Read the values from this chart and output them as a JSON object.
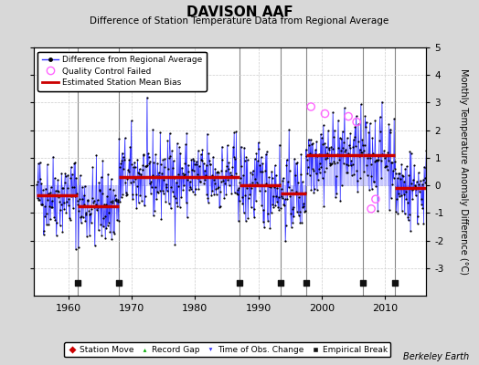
{
  "title": "DAVISON AAF",
  "subtitle": "Difference of Station Temperature Data from Regional Average",
  "ylabel": "Monthly Temperature Anomaly Difference (°C)",
  "xlabel_years": [
    1960,
    1970,
    1980,
    1990,
    2000,
    2010
  ],
  "xlim": [
    1954.5,
    2016.5
  ],
  "ylim": [
    -4,
    5
  ],
  "yticks": [
    -3,
    -2,
    -1,
    0,
    1,
    2,
    3,
    4,
    5
  ],
  "background_color": "#d8d8d8",
  "plot_bg_color": "#ffffff",
  "seed": 42,
  "segments": [
    {
      "start": 1955.0,
      "end": 1961.5,
      "bias": -0.35
    },
    {
      "start": 1961.5,
      "end": 1968.0,
      "bias": -0.75
    },
    {
      "start": 1968.0,
      "end": 1987.0,
      "bias": 0.3
    },
    {
      "start": 1987.0,
      "end": 1993.5,
      "bias": 0.0
    },
    {
      "start": 1993.5,
      "end": 1997.5,
      "bias": -0.3
    },
    {
      "start": 1997.5,
      "end": 2006.5,
      "bias": 1.1
    },
    {
      "start": 2006.5,
      "end": 2011.5,
      "bias": 1.1
    },
    {
      "start": 2011.5,
      "end": 2016.5,
      "bias": -0.1
    }
  ],
  "qc_failed_times": [
    1998.3,
    2000.5,
    2004.2,
    2005.5,
    2007.8,
    2008.5
  ],
  "qc_failed_values": [
    2.85,
    2.6,
    2.5,
    2.3,
    -0.85,
    -0.5
  ],
  "vertical_lines_x": [
    1961.5,
    1968.0,
    1987.0,
    1993.5,
    1997.5,
    2006.5,
    2011.5
  ],
  "empirical_break_times": [
    1961.5,
    1968.0,
    1987.0,
    1993.5,
    1997.5,
    2006.5,
    2011.5
  ],
  "colors": {
    "line": "#3333ff",
    "line_fill": "#aaaaff",
    "dot": "#000000",
    "bias": "#cc0000",
    "qc": "#ff66ff",
    "obs_change": "#3333ff",
    "station_move": "#cc0000",
    "record_gap": "#00aa00",
    "empirical": "#111111",
    "grid": "#cccccc",
    "vline": "#888888"
  }
}
